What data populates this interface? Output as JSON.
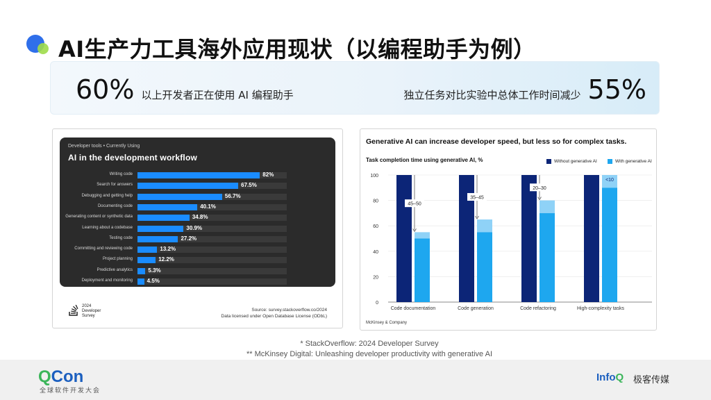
{
  "title": "AI生产力工具海外应用现状（以编程助手为例）",
  "stats": {
    "left_number": "60%",
    "left_text": "以上开发者正在使用 AI 编程助手",
    "right_text": "独立任务对比实验中总体工作时间减少",
    "right_number": "55%"
  },
  "colors": {
    "so_bar": "#1a8cff",
    "mk_without": "#0c2577",
    "mk_with": "#1ea7ef",
    "mk_with_light": "#8fd2f7",
    "accent_blue": "#2f6fea",
    "accent_green": "#9fdc4a"
  },
  "chart_data": [
    {
      "type": "bar",
      "orientation": "horizontal",
      "kicker": "Developer tools • Currently Using",
      "title": "AI in the development workflow",
      "categories": [
        "Writing code",
        "Search for answers",
        "Debugging and getting help",
        "Documenting code",
        "Generating content or synthetic data",
        "Learning about a codebase",
        "Testing code",
        "Committing and reviewing code",
        "Project planning",
        "Predictive analytics",
        "Deployment and monitoring"
      ],
      "values": [
        82,
        67.5,
        56.7,
        40.1,
        34.8,
        30.9,
        27.2,
        13.2,
        12.2,
        5.3,
        4.5
      ],
      "value_labels": [
        "82%",
        "67.5%",
        "56.7%",
        "40.1%",
        "34.8%",
        "30.9%",
        "27.2%",
        "13.2%",
        "12.2%",
        "5.3%",
        "4.5%"
      ],
      "xlim": [
        0,
        100
      ],
      "logo_text": "2024\nDeveloper\nSurvey",
      "source": "Source: survey.stackoverflow.co/2024",
      "license": "Data licensed under Open Database License (ODbL)"
    },
    {
      "type": "bar",
      "orientation": "vertical",
      "title": "Generative AI can increase developer speed, but less so for complex tasks.",
      "subtitle": "Task completion time using generative AI, %",
      "categories": [
        "Code documentation",
        "Code generation",
        "Code refactoring",
        "High-complexity tasks"
      ],
      "series": [
        {
          "name": "Without generative AI",
          "values": [
            100,
            100,
            100,
            100
          ]
        },
        {
          "name": "With generative AI",
          "values": [
            50,
            55,
            70,
            90
          ],
          "range_top": [
            55,
            65,
            80,
            100
          ]
        }
      ],
      "annotations": [
        "45–50",
        "35–45",
        "20–30",
        "<10"
      ],
      "yticks": [
        0,
        20,
        40,
        60,
        80,
        100
      ],
      "ylim": [
        0,
        100
      ],
      "source": "McKinsey & Company"
    }
  ],
  "footnotes": [
    "* StackOverflow: 2024 Developer Survey",
    "** McKinsey Digital: Unleashing developer productivity with generative AI"
  ],
  "footer": {
    "qcon_q": "Q",
    "qcon_rest": "Con",
    "qcon_sub": "全球软件开发大会",
    "infoq_main": "Info",
    "infoq_q": "Q",
    "infoq_cn": "极客传媒"
  }
}
